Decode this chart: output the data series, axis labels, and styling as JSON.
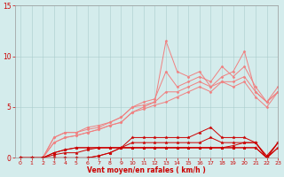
{
  "x": [
    0,
    1,
    2,
    3,
    4,
    5,
    6,
    7,
    8,
    9,
    10,
    11,
    12,
    13,
    14,
    15,
    16,
    17,
    18,
    19,
    20,
    21,
    22,
    23
  ],
  "series_light": [
    [
      0,
      0,
      0,
      2.0,
      2.5,
      2.5,
      2.8,
      3.0,
      3.5,
      4.0,
      5.0,
      5.2,
      5.5,
      11.5,
      8.5,
      8.0,
      8.5,
      7.0,
      8.0,
      8.5,
      10.5,
      6.5,
      5.5,
      6.5
    ],
    [
      0,
      0,
      0,
      2.0,
      2.5,
      2.5,
      3.0,
      3.2,
      3.5,
      4.0,
      5.0,
      5.5,
      5.8,
      8.5,
      7.0,
      7.5,
      8.0,
      7.5,
      9.0,
      8.0,
      9.0,
      7.0,
      5.5,
      7.0
    ],
    [
      0,
      0,
      0,
      1.5,
      2.0,
      2.2,
      2.5,
      2.8,
      3.2,
      3.5,
      4.5,
      5.0,
      5.5,
      6.5,
      6.5,
      7.0,
      7.5,
      7.0,
      7.5,
      7.5,
      8.0,
      6.5,
      5.5,
      6.5
    ],
    [
      0,
      0,
      0,
      1.5,
      2.0,
      2.2,
      2.5,
      2.8,
      3.2,
      3.5,
      4.5,
      4.8,
      5.2,
      5.5,
      6.0,
      6.5,
      7.0,
      6.5,
      7.5,
      7.0,
      7.5,
      6.0,
      5.0,
      6.5
    ]
  ],
  "series_dark": [
    [
      0,
      0,
      0,
      0,
      0,
      0,
      0,
      0.2,
      0.5,
      1.0,
      2.0,
      2.0,
      2.0,
      2.0,
      2.0,
      2.0,
      2.5,
      3.0,
      2.0,
      2.0,
      2.0,
      1.5,
      0.2,
      1.5
    ],
    [
      0,
      0,
      0,
      0,
      0,
      0,
      0,
      0.2,
      0.5,
      1.0,
      1.5,
      1.5,
      1.5,
      1.5,
      1.5,
      1.5,
      1.5,
      2.0,
      1.5,
      1.5,
      1.5,
      1.5,
      0.0,
      1.5
    ],
    [
      0,
      0,
      0,
      0.5,
      0.8,
      1.0,
      1.0,
      1.0,
      1.0,
      1.0,
      1.0,
      1.0,
      1.0,
      1.0,
      1.0,
      1.0,
      1.0,
      1.0,
      1.0,
      1.0,
      1.0,
      1.0,
      0.0,
      1.0
    ],
    [
      0,
      0,
      0,
      0.5,
      0.8,
      1.0,
      1.0,
      1.0,
      1.0,
      1.0,
      1.0,
      1.0,
      1.0,
      1.0,
      1.0,
      1.0,
      1.0,
      1.0,
      1.0,
      1.0,
      1.0,
      1.0,
      0.0,
      1.0
    ],
    [
      0,
      0,
      0,
      0.3,
      0.5,
      0.5,
      0.8,
      1.0,
      1.0,
      1.0,
      1.0,
      1.0,
      1.0,
      1.0,
      1.0,
      1.0,
      1.0,
      1.0,
      1.0,
      1.2,
      1.5,
      1.5,
      0.0,
      1.5
    ]
  ],
  "color_light": "#f08080",
  "color_dark": "#cc0000",
  "xlim": [
    -0.5,
    23
  ],
  "ylim": [
    0,
    15
  ],
  "yticks": [
    0,
    5,
    10,
    15
  ],
  "xticks": [
    0,
    1,
    2,
    3,
    4,
    5,
    6,
    7,
    8,
    9,
    10,
    11,
    12,
    13,
    14,
    15,
    16,
    17,
    18,
    19,
    20,
    21,
    22,
    23
  ],
  "xlabel": "Vent moyen/en rafales ( km/h )",
  "bgcolor": "#d4ecec",
  "grid_color": "#aacccc",
  "tick_color": "#cc0000",
  "label_color": "#cc0000"
}
